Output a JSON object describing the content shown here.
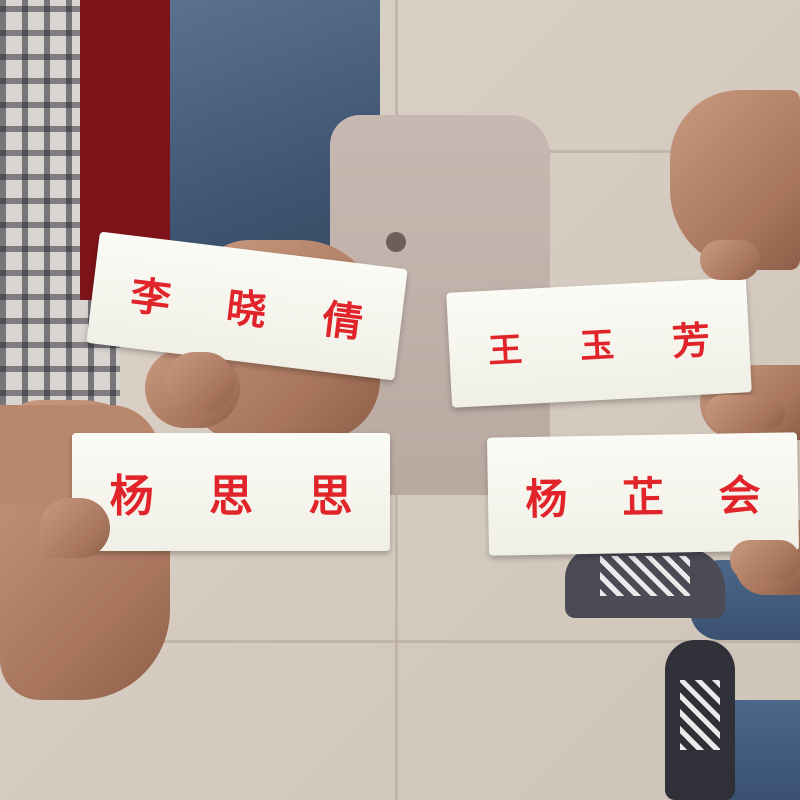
{
  "image": {
    "name_cards": [
      {
        "chars": [
          "李",
          "晓",
          "倩"
        ]
      },
      {
        "chars": [
          "王",
          "玉",
          "芳"
        ]
      },
      {
        "chars": [
          "杨",
          "思",
          "思"
        ]
      },
      {
        "chars": [
          "杨",
          "芷",
          "会"
        ]
      }
    ],
    "colors": {
      "card": "#f7f6ef",
      "ink": "#e0242a",
      "floor": "#d9d0c6"
    }
  }
}
